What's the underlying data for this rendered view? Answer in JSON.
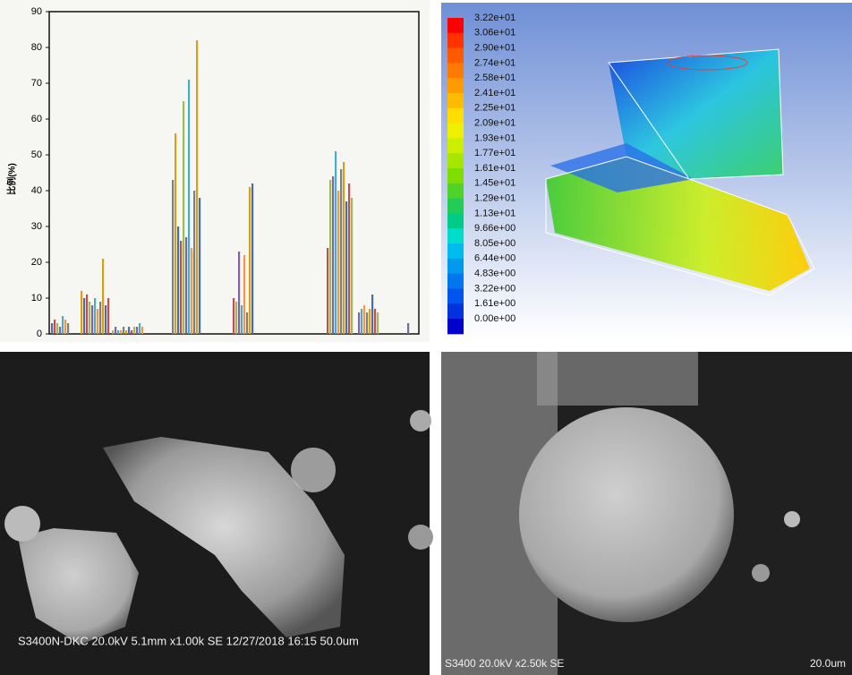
{
  "chart_data": {
    "type": "bar",
    "y_label": "比例(%)",
    "ylim": [
      0,
      90
    ],
    "yticks": [
      0,
      10,
      20,
      30,
      40,
      50,
      60,
      70,
      80,
      90
    ],
    "colors": [
      "#4a6fa5",
      "#c0504d",
      "#9bbb59",
      "#8064a2",
      "#4bacc6",
      "#f79646",
      "#7f7f7f",
      "#d4a017"
    ],
    "groups": [
      {
        "values": [
          3,
          4,
          3,
          2,
          5,
          4,
          3
        ]
      },
      {
        "values": [
          12,
          10,
          11,
          9,
          8,
          10,
          7,
          9,
          21,
          8,
          10
        ]
      },
      {
        "values": [
          1,
          2,
          1,
          1,
          2,
          1,
          2,
          1,
          2,
          2,
          3,
          2
        ]
      },
      {
        "values": [
          43,
          56,
          30,
          26,
          65,
          27,
          71,
          24,
          40,
          82,
          38
        ]
      },
      {
        "values": [
          10,
          9,
          23,
          8,
          22,
          6,
          41,
          42
        ]
      },
      {
        "values": [
          24,
          43,
          44,
          51,
          40,
          46,
          48,
          37,
          42,
          38
        ]
      },
      {
        "values": [
          6,
          7,
          8,
          6,
          7,
          11,
          7,
          6
        ]
      },
      {
        "values": [
          3
        ]
      }
    ]
  },
  "colorbar": {
    "labels": [
      "3.22e+01",
      "3.06e+01",
      "2.90e+01",
      "2.74e+01",
      "2.58e+01",
      "2.41e+01",
      "2.25e+01",
      "2.09e+01",
      "1.93e+01",
      "1.77e+01",
      "1.61e+01",
      "1.45e+01",
      "1.29e+01",
      "1.13e+01",
      "9.66e+00",
      "8.05e+00",
      "6.44e+00",
      "4.83e+00",
      "3.22e+00",
      "1.61e+00",
      "0.00e+00"
    ],
    "colors": [
      "#ff0000",
      "#ff3300",
      "#ff5a00",
      "#ff7a00",
      "#ff9a00",
      "#ffbb00",
      "#ffdd00",
      "#eef000",
      "#ccee00",
      "#a6e600",
      "#7fdd00",
      "#4fd22a",
      "#22cc55",
      "#00cc88",
      "#00ddcc",
      "#00bbee",
      "#0099ee",
      "#0077ee",
      "#0055ee",
      "#0033dd",
      "#0000cc"
    ]
  },
  "sem_left": {
    "caption": "S3400N-DKC 20.0kV 5.1mm x1.00k SE  12/27/2018 16:15 50.0um"
  },
  "sem_right": {
    "caption": "S3400 20.0kV x2.50k SE",
    "scale": "20.0um"
  }
}
